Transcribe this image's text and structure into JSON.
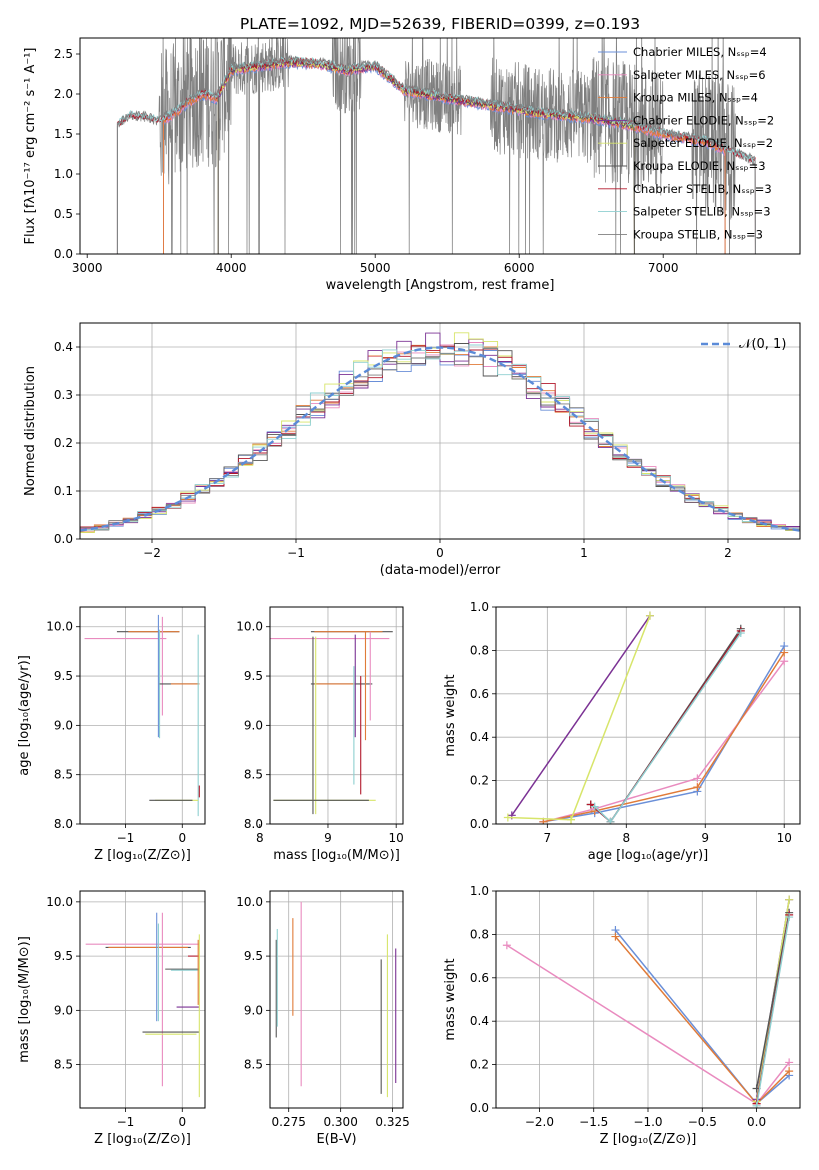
{
  "colors": [
    "#6a8fd8",
    "#e98bbf",
    "#e07b39",
    "#7b3294",
    "#d7e56a",
    "#555555",
    "#b2182b",
    "#8ecfd0",
    "#7f7f7f"
  ],
  "chart_data": [
    {
      "id": "spectrum",
      "type": "line",
      "title": "PLATE=1092, MJD=52639, FIBERID=0399, z=0.193",
      "xlabel": "wavelength [Angstrom, rest frame]",
      "ylabel": "Flux [fλ10⁻¹⁷ erg cm⁻² s⁻¹ A⁻¹]",
      "xlim": [
        2950,
        7950
      ],
      "ylim": [
        0,
        2.7
      ],
      "xticks": [
        3000,
        4000,
        5000,
        6000,
        7000
      ],
      "yticks": [
        0,
        0.5,
        1.0,
        1.5,
        2.0,
        2.5
      ],
      "grid": false,
      "legend_position": "top-right",
      "series": [
        {
          "name": "Chabrier MILES, Nₛₛₚ=4",
          "model_range": [
            3530,
            7430
          ]
        },
        {
          "name": "Salpeter MILES, Nₛₛₚ=6",
          "model_range": [
            3530,
            7430
          ]
        },
        {
          "name": "Kroupa MILES, Nₛₛₚ=4",
          "model_range": [
            3530,
            7430
          ]
        },
        {
          "name": "Chabrier ELODIE, Nₛₛₚ=2",
          "model_range": [
            3910,
            6800
          ]
        },
        {
          "name": "Salpeter ELODIE, Nₛₛₚ=2",
          "model_range": [
            3910,
            6800
          ]
        },
        {
          "name": "Kroupa ELODIE, Nₛₛₚ=3",
          "model_range": [
            3910,
            6800
          ]
        },
        {
          "name": "Chabrier STELIB, Nₛₛₚ=3",
          "model_range": [
            3210,
            7640
          ]
        },
        {
          "name": "Salpeter STELIB, Nₛₛₚ=3",
          "model_range": [
            3210,
            7640
          ]
        },
        {
          "name": "Kroupa STELIB, Nₛₛₚ=3",
          "model_range": [
            3210,
            7640
          ]
        }
      ],
      "continuum": [
        [
          3210,
          1.6
        ],
        [
          3300,
          1.72
        ],
        [
          3400,
          1.7
        ],
        [
          3500,
          1.65
        ],
        [
          3600,
          1.75
        ],
        [
          3700,
          1.9
        ],
        [
          3800,
          2.0
        ],
        [
          3900,
          1.95
        ],
        [
          4000,
          2.3
        ],
        [
          4200,
          2.35
        ],
        [
          4400,
          2.4
        ],
        [
          4600,
          2.38
        ],
        [
          4800,
          2.3
        ],
        [
          5000,
          2.35
        ],
        [
          5200,
          2.05
        ],
        [
          5500,
          1.95
        ],
        [
          6000,
          1.8
        ],
        [
          6200,
          1.75
        ],
        [
          6500,
          1.7
        ],
        [
          6800,
          1.6
        ],
        [
          7000,
          1.5
        ],
        [
          7300,
          1.4
        ],
        [
          7640,
          1.15
        ]
      ]
    },
    {
      "id": "residuals",
      "type": "histogram",
      "xlabel": "(data-model)/error",
      "ylabel": "Normed distribution",
      "xlim": [
        -2.5,
        2.5
      ],
      "ylim": [
        0,
        0.45
      ],
      "xticks": [
        -2,
        -1,
        0,
        1,
        2
      ],
      "yticks": [
        0,
        0.1,
        0.2,
        0.3,
        0.4
      ],
      "grid": true,
      "bin_width": 0.1,
      "legend_position": "top-right",
      "legend": "𝒩(0, 1)",
      "reference": "gaussian mean 0 sigma 1"
    },
    {
      "id": "age-Z",
      "type": "errorbar",
      "xlabel": "Z [log₁₀(Z/Z⊙)]",
      "ylabel": "age  [log₁₀(age/yr)]",
      "xlim": [
        -1.8,
        0.4
      ],
      "ylim": [
        8.0,
        10.2
      ],
      "xticks": [
        -1,
        0
      ],
      "yticks": [
        8.0,
        8.5,
        9.0,
        9.5,
        10.0
      ],
      "grid": true,
      "points": [
        {
          "c": 1,
          "x": -1.0,
          "y": 9.88,
          "xerr": 0.72,
          "yerr": 0.0
        },
        {
          "c": 5,
          "x": -0.6,
          "y": 9.95,
          "xerr": 0.55,
          "yerr": 0.0
        },
        {
          "c": 2,
          "x": -0.5,
          "y": 9.95,
          "xerr": 0.45,
          "yerr": 0.0
        },
        {
          "c": 0,
          "x": -0.42,
          "y": 9.5,
          "xerr": 0.0,
          "yerr": 0.62
        },
        {
          "c": 7,
          "x": -0.4,
          "y": 9.42,
          "xerr": 0.0,
          "yerr": 0.55
        },
        {
          "c": 1,
          "x": -0.35,
          "y": 9.6,
          "xerr": 0.0,
          "yerr": 0.5
        },
        {
          "c": 5,
          "x": -0.05,
          "y": 9.42,
          "xerr": 0.35,
          "yerr": 0.0
        },
        {
          "c": 2,
          "x": 0.05,
          "y": 9.42,
          "xerr": 0.25,
          "yerr": 0.0
        },
        {
          "c": 7,
          "x": 0.28,
          "y": 9.0,
          "xerr": 0.0,
          "yerr": 0.92
        },
        {
          "c": 4,
          "x": -0.1,
          "y": 8.24,
          "xerr": 0.38,
          "yerr": 0.0
        },
        {
          "c": 5,
          "x": -0.2,
          "y": 8.24,
          "xerr": 0.38,
          "yerr": 0.0
        },
        {
          "c": 6,
          "x": 0.3,
          "y": 8.33,
          "xerr": 0.0,
          "yerr": 0.06
        }
      ]
    },
    {
      "id": "age-mass",
      "type": "errorbar",
      "xlabel": "mass [log₁₀(M/M⊙)]",
      "ylabel": "",
      "xlim": [
        8.15,
        10.1
      ],
      "ylim": [
        8.0,
        10.2
      ],
      "xticks": [
        8,
        9,
        10
      ],
      "yticks": [
        8.0,
        8.5,
        9.0,
        9.5,
        10.0
      ],
      "grid": true,
      "points": [
        {
          "c": 1,
          "x": 9.0,
          "y": 9.88,
          "xerr": 0.9,
          "yerr": 0.0
        },
        {
          "c": 5,
          "x": 9.35,
          "y": 9.95,
          "xerr": 0.6,
          "yerr": 0.0
        },
        {
          "c": 2,
          "x": 9.3,
          "y": 9.95,
          "xerr": 0.5,
          "yerr": 0.0
        },
        {
          "c": 5,
          "x": 9.2,
          "y": 9.42,
          "xerr": 0.45,
          "yerr": 0.0
        },
        {
          "c": 2,
          "x": 9.1,
          "y": 9.42,
          "xerr": 0.3,
          "yerr": 0.0
        },
        {
          "c": 4,
          "x": 8.82,
          "y": 9.0,
          "xerr": 0.0,
          "yerr": 0.9
        },
        {
          "c": 5,
          "x": 8.78,
          "y": 9.0,
          "xerr": 0.0,
          "yerr": 0.9
        },
        {
          "c": 3,
          "x": 9.4,
          "y": 9.4,
          "xerr": 0.0,
          "yerr": 0.52
        },
        {
          "c": 7,
          "x": 9.38,
          "y": 9.0,
          "xerr": 0.0,
          "yerr": 0.6
        },
        {
          "c": 2,
          "x": 9.55,
          "y": 9.4,
          "xerr": 0.0,
          "yerr": 0.55
        },
        {
          "c": 6,
          "x": 9.48,
          "y": 8.9,
          "xerr": 0.0,
          "yerr": 0.6
        },
        {
          "c": 1,
          "x": 9.62,
          "y": 9.5,
          "xerr": 0.0,
          "yerr": 0.45
        },
        {
          "c": 4,
          "x": 8.95,
          "y": 8.24,
          "xerr": 0.75,
          "yerr": 0.0
        },
        {
          "c": 5,
          "x": 8.9,
          "y": 8.24,
          "xerr": 0.7,
          "yerr": 0.0
        }
      ]
    },
    {
      "id": "weight-age",
      "type": "line",
      "xlabel": "age  [log₁₀(age/yr)]",
      "ylabel": "mass weight",
      "xlim": [
        6.35,
        10.2
      ],
      "ylim": [
        0,
        1.0
      ],
      "xticks": [
        7,
        8,
        9,
        10
      ],
      "yticks": [
        0.0,
        0.2,
        0.4,
        0.6,
        0.8,
        1.0
      ],
      "grid": true,
      "series": [
        {
          "c": 0,
          "x": [
            6.95,
            7.6,
            8.9,
            10.0
          ],
          "y": [
            0.01,
            0.05,
            0.15,
            0.82
          ]
        },
        {
          "c": 1,
          "x": [
            6.95,
            7.6,
            8.9,
            10.0
          ],
          "y": [
            0.01,
            0.07,
            0.21,
            0.75
          ]
        },
        {
          "c": 2,
          "x": [
            6.95,
            7.6,
            8.9,
            10.0
          ],
          "y": [
            0.01,
            0.06,
            0.17,
            0.79
          ]
        },
        {
          "c": 3,
          "x": [
            6.55,
            8.3
          ],
          "y": [
            0.04,
            0.96
          ]
        },
        {
          "c": 4,
          "x": [
            6.5,
            7.3
          ],
          "y": [
            0.03,
            0.02
          ]
        },
        {
          "c": 4,
          "x": [
            7.3,
            8.3
          ],
          "y": [
            0.02,
            0.96
          ]
        },
        {
          "c": 5,
          "x": [
            7.55,
            7.8,
            9.45
          ],
          "y": [
            0.09,
            0.01,
            0.9
          ]
        },
        {
          "c": 6,
          "x": [
            7.55,
            7.8,
            9.45
          ],
          "y": [
            0.09,
            0.01,
            0.89
          ]
        },
        {
          "c": 7,
          "x": [
            7.6,
            7.8,
            9.45
          ],
          "y": [
            0.08,
            0.01,
            0.88
          ]
        }
      ]
    },
    {
      "id": "mass-Z",
      "type": "errorbar",
      "xlabel": "Z [log₁₀(Z/Z⊙)]",
      "ylabel": "mass [log₁₀(M/M⊙)]",
      "xlim": [
        -1.8,
        0.4
      ],
      "ylim": [
        8.1,
        10.1
      ],
      "xticks": [
        -1,
        0
      ],
      "yticks": [
        8.5,
        9.0,
        9.5,
        10.0
      ],
      "grid": true,
      "points": [
        {
          "c": 1,
          "x": -0.7,
          "y": 9.61,
          "xerr": 1.0,
          "yerr": 0.0
        },
        {
          "c": 5,
          "x": -0.6,
          "y": 9.58,
          "xerr": 0.75,
          "yerr": 0.0
        },
        {
          "c": 2,
          "x": -0.6,
          "y": 9.58,
          "xerr": 0.7,
          "yerr": 0.0
        },
        {
          "c": 0,
          "x": -0.45,
          "y": 9.4,
          "xerr": 0.0,
          "yerr": 0.5
        },
        {
          "c": 7,
          "x": -0.42,
          "y": 9.35,
          "xerr": 0.0,
          "yerr": 0.45
        },
        {
          "c": 1,
          "x": -0.35,
          "y": 9.1,
          "xerr": 0.0,
          "yerr": 0.8
        },
        {
          "c": 5,
          "x": 0.0,
          "y": 9.38,
          "xerr": 0.3,
          "yerr": 0.0
        },
        {
          "c": 7,
          "x": 0.05,
          "y": 9.37,
          "xerr": 0.25,
          "yerr": 0.0
        },
        {
          "c": 6,
          "x": 0.2,
          "y": 9.5,
          "xerr": 0.1,
          "yerr": 0.0
        },
        {
          "c": 3,
          "x": 0.1,
          "y": 9.03,
          "xerr": 0.2,
          "yerr": 0.0
        },
        {
          "c": 5,
          "x": -0.2,
          "y": 8.8,
          "xerr": 0.5,
          "yerr": 0.0
        },
        {
          "c": 4,
          "x": -0.2,
          "y": 8.78,
          "xerr": 0.45,
          "yerr": 0.0
        },
        {
          "c": 4,
          "x": 0.3,
          "y": 8.95,
          "xerr": 0.0,
          "yerr": 0.75
        },
        {
          "c": 2,
          "x": 0.28,
          "y": 9.35,
          "xerr": 0.0,
          "yerr": 0.3
        }
      ]
    },
    {
      "id": "mass-EBV",
      "type": "errorbar",
      "xlabel": "E(B-V)",
      "ylabel": "",
      "xlim": [
        0.266,
        0.33
      ],
      "ylim": [
        8.1,
        10.1
      ],
      "xticks": [
        0.275,
        0.3,
        0.325
      ],
      "yticks": [
        8.5,
        9.0,
        9.5,
        10.0
      ],
      "xtick_labels": [
        "0.275",
        "0.300",
        "0.325"
      ],
      "grid": true,
      "points": [
        {
          "c": 5,
          "x": 0.269,
          "y": 9.2,
          "xerr": 0.0,
          "yerr": 0.45
        },
        {
          "c": 7,
          "x": 0.2695,
          "y": 9.3,
          "xerr": 0.0,
          "yerr": 0.45
        },
        {
          "c": 2,
          "x": 0.277,
          "y": 9.4,
          "xerr": 0.0,
          "yerr": 0.45
        },
        {
          "c": 1,
          "x": 0.281,
          "y": 9.15,
          "xerr": 0.0,
          "yerr": 0.85
        },
        {
          "c": 5,
          "x": 0.3195,
          "y": 8.85,
          "xerr": 0.0,
          "yerr": 0.62
        },
        {
          "c": 4,
          "x": 0.3225,
          "y": 8.95,
          "xerr": 0.0,
          "yerr": 0.75
        },
        {
          "c": 3,
          "x": 0.3265,
          "y": 8.95,
          "xerr": 0.0,
          "yerr": 0.62
        }
      ]
    },
    {
      "id": "weight-Z",
      "type": "line",
      "xlabel": "Z [log₁₀(Z/Z⊙)]",
      "ylabel": "mass weight",
      "xlim": [
        -2.4,
        0.4
      ],
      "ylim": [
        0,
        1.0
      ],
      "xticks": [
        -2.0,
        -1.5,
        -1.0,
        -0.5,
        0.0
      ],
      "yticks": [
        0.0,
        0.2,
        0.4,
        0.6,
        0.8,
        1.0
      ],
      "xtick_labels": [
        "−2.0",
        "−1.5",
        "−1.0",
        "−0.5",
        "0.0"
      ],
      "grid": true,
      "series": [
        {
          "c": 0,
          "x": [
            -1.3,
            0.0,
            0.3
          ],
          "y": [
            0.82,
            0.02,
            0.15
          ]
        },
        {
          "c": 1,
          "x": [
            -2.3,
            0.0,
            0.3
          ],
          "y": [
            0.75,
            0.02,
            0.21
          ]
        },
        {
          "c": 2,
          "x": [
            -1.3,
            0.0,
            0.3
          ],
          "y": [
            0.79,
            0.02,
            0.17
          ]
        },
        {
          "c": 3,
          "x": [
            0.0,
            0.3
          ],
          "y": [
            0.04,
            0.96
          ]
        },
        {
          "c": 4,
          "x": [
            0.0,
            0.3
          ],
          "y": [
            0.03,
            0.96
          ]
        },
        {
          "c": 5,
          "x": [
            0.0,
            0.3
          ],
          "y": [
            0.09,
            0.9
          ]
        },
        {
          "c": 6,
          "x": [
            0.0,
            0.3
          ],
          "y": [
            0.02,
            0.89
          ]
        },
        {
          "c": 7,
          "x": [
            0.0,
            0.3
          ],
          "y": [
            0.01,
            0.88
          ]
        }
      ]
    }
  ]
}
